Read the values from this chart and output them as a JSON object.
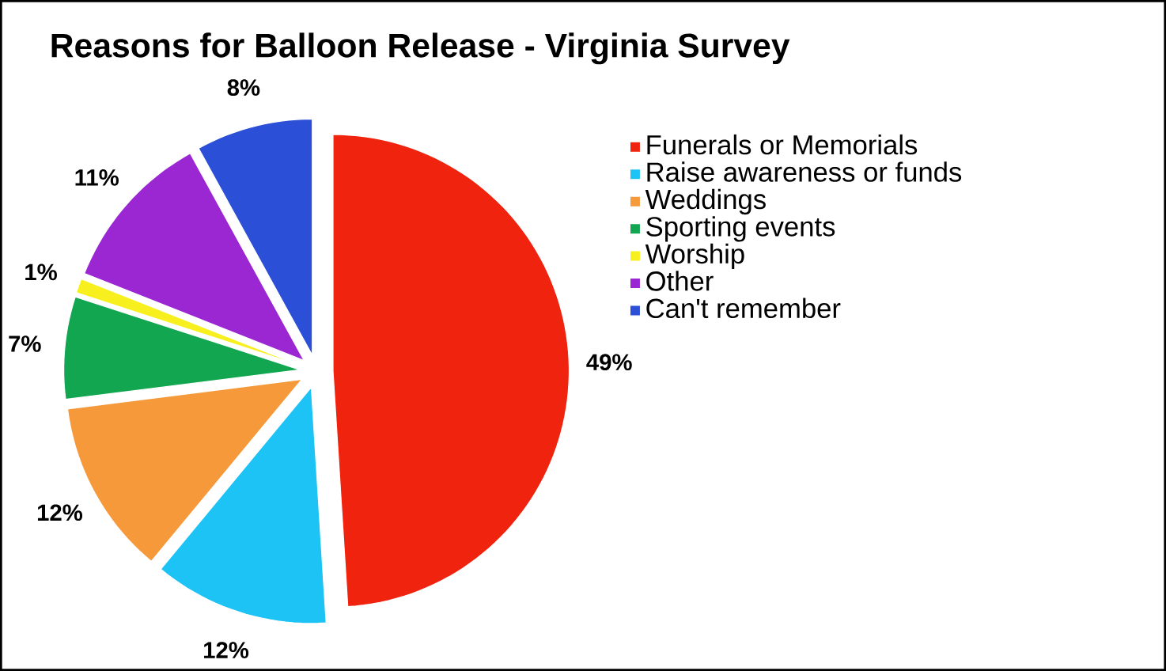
{
  "chart_data": {
    "type": "pie",
    "title": "Reasons for Balloon Release - Virginia Survey",
    "categories": [
      "Funerals or Memorials",
      "Raise awareness or funds",
      "Weddings",
      "Sporting events",
      "Worship",
      "Other",
      "Can't remember"
    ],
    "values": [
      49,
      12,
      12,
      7,
      1,
      11,
      8
    ],
    "value_labels": [
      "49%",
      "12%",
      "12%",
      "7%",
      "1%",
      "11%",
      "8%"
    ],
    "colors": [
      "#f0230f",
      "#1ec3f5",
      "#f5993a",
      "#12a650",
      "#f7f01e",
      "#9a27d2",
      "#2c4fd8"
    ],
    "legend": "right"
  }
}
